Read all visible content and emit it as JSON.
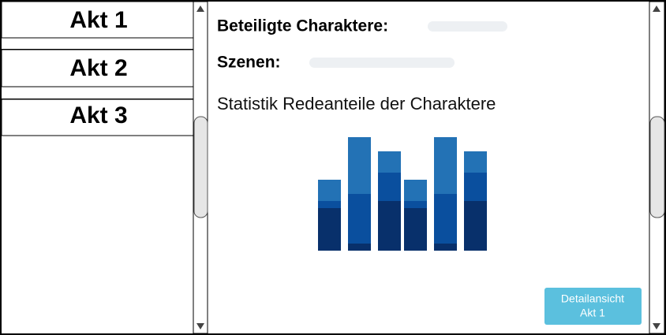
{
  "sidebar": {
    "items": [
      "Akt 1",
      "Akt 2",
      "Akt 3"
    ]
  },
  "details": {
    "characters_label": "Beteiligte Charaktere:",
    "scenes_label": "Szenen:",
    "statistics_title": "Statistik Redeanteile der Charaktere"
  },
  "button": {
    "lines": [
      "Detailansicht",
      "Akt 1"
    ]
  }
}
